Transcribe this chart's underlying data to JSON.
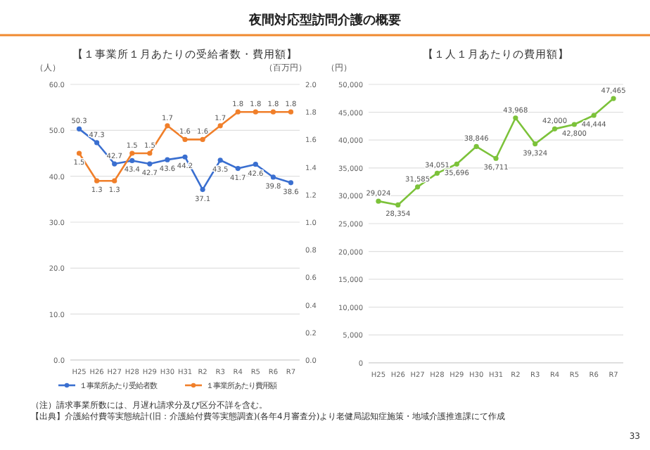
{
  "chart_data": [
    {
      "type": "line",
      "title": "【１事業所１月あたりの受給者数・費用額】",
      "ylabel": "（人）",
      "y2label": "（百万円）",
      "categories": [
        "H25",
        "H26",
        "H27",
        "H28",
        "H29",
        "H30",
        "H31",
        "R2",
        "R3",
        "R4",
        "R5",
        "R6",
        "R7"
      ],
      "series": [
        {
          "name": "１事業所あたり受給者数",
          "color": "#3a6fd0",
          "values": [
            50.3,
            47.3,
            42.7,
            43.4,
            42.7,
            43.6,
            44.2,
            37.1,
            43.5,
            41.7,
            42.6,
            39.8,
            38.6
          ]
        },
        {
          "name": "１事業所あたり費用額",
          "color": "#f07f2a",
          "axis": "y2",
          "values": [
            1.5,
            1.3,
            1.3,
            1.5,
            1.5,
            1.7,
            1.6,
            1.6,
            1.7,
            1.8,
            1.8,
            1.8,
            1.8
          ]
        }
      ],
      "ylim": [
        0,
        60
      ],
      "yticks": [
        {
          "value": 0,
          "label": "0.0"
        },
        {
          "value": 10,
          "label": "10.0"
        },
        {
          "value": 20,
          "label": "20.0"
        },
        {
          "value": 30,
          "label": "30.0"
        },
        {
          "value": 40,
          "label": "40.0"
        },
        {
          "value": 50,
          "label": "50.0"
        },
        {
          "value": 60,
          "label": "60.0"
        }
      ],
      "y2lim": [
        0,
        2
      ],
      "y2ticks": [
        {
          "value": 0,
          "label": "0.0"
        },
        {
          "value": 0.2,
          "label": "0.2"
        },
        {
          "value": 0.4,
          "label": "0.4"
        },
        {
          "value": 0.6,
          "label": "0.6"
        },
        {
          "value": 0.8,
          "label": "0.8"
        },
        {
          "value": 1,
          "label": "1.0"
        },
        {
          "value": 1.2,
          "label": "1.2"
        },
        {
          "value": 1.4,
          "label": "1.4"
        },
        {
          "value": 1.6,
          "label": "1.6"
        },
        {
          "value": 1.8,
          "label": "1.8"
        },
        {
          "value": 2,
          "label": "2.0"
        }
      ],
      "grid": "y",
      "legend": "bottom",
      "marker": "circle",
      "data_labels": true,
      "annotations": [
        "夜間対応型訪問介護の概要",
        "（注）請求事業所数には、月遅れ請求分及び区分不詳を含む。",
        "【出典】介護給付費等実態統計(旧：介護給付費等実態調査)(各年4月審査分)より老健局認知症施策・地域介護推進課にて作成",
        "33"
      ]
    },
    {
      "type": "line",
      "title": "【１人１月あたりの費用額】",
      "ylabel": "（円）",
      "categories": [
        "H25",
        "H26",
        "H27",
        "H28",
        "H29",
        "H30",
        "H31",
        "R2",
        "R3",
        "R4",
        "R5",
        "R6",
        "R7"
      ],
      "series": [
        {
          "color": "#7cc23a",
          "values": [
            29024,
            28354,
            31585,
            34051,
            35696,
            38846,
            36711,
            43968,
            39324,
            42000,
            42800,
            44444,
            47465
          ],
          "value_labels": [
            "29,024",
            "28,354",
            "31,585",
            "34,051",
            "35,696",
            "38,846",
            "36,711",
            "43,968",
            "39,324",
            "42,000",
            "42,800",
            "44,444",
            "47,465"
          ]
        }
      ],
      "ylim": [
        0,
        50000
      ],
      "yticks": [
        0,
        {
          "value": 5000,
          "label": "5,000"
        },
        {
          "value": 10000,
          "label": "10,000"
        },
        {
          "value": 15000,
          "label": "15,000"
        },
        {
          "value": 20000,
          "label": "20,000"
        },
        {
          "value": 25000,
          "label": "25,000"
        },
        {
          "value": 30000,
          "label": "30,000"
        },
        {
          "value": 35000,
          "label": "35,000"
        },
        {
          "value": 40000,
          "label": "40,000"
        },
        {
          "value": 45000,
          "label": "45,000"
        },
        {
          "value": 50000,
          "label": "50,000"
        }
      ],
      "grid": "y",
      "marker": "circle"
    }
  ]
}
